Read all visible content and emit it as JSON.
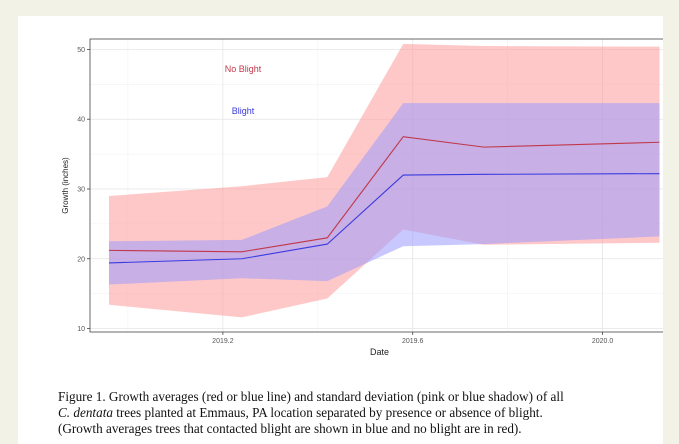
{
  "chart_data": {
    "type": "line",
    "xlabel": "Date",
    "ylabel": "Growth (inches)",
    "x_ticks": [
      "2019.2",
      "2019.6",
      "2020.0"
    ],
    "y_ticks": [
      "10",
      "20",
      "30",
      "40",
      "50"
    ],
    "xlim": [
      2018.92,
      2020.14
    ],
    "ylim": [
      9.5,
      51.5
    ],
    "grid": true,
    "x": [
      2018.96,
      2019.24,
      2019.42,
      2019.58,
      2019.75,
      2020.12
    ],
    "series": [
      {
        "name": "No Blight",
        "color": "#c0384a",
        "band_color": "#ff9a9a",
        "values": [
          21.2,
          21.0,
          23.0,
          37.5,
          36.0,
          36.7
        ],
        "lower": [
          13.4,
          11.6,
          14.3,
          24.2,
          22.0,
          22.3
        ],
        "upper": [
          29.0,
          30.4,
          31.7,
          50.8,
          50.5,
          50.4
        ]
      },
      {
        "name": "Blight",
        "color": "#3a3ae0",
        "band_color": "#9a9aff",
        "values": [
          19.4,
          20.0,
          22.1,
          32.0,
          32.1,
          32.2
        ],
        "lower": [
          16.3,
          17.2,
          16.8,
          21.8,
          22.1,
          23.2
        ],
        "upper": [
          22.5,
          22.7,
          27.5,
          42.3,
          42.3,
          42.3
        ]
      }
    ]
  },
  "caption": {
    "line1": "Figure 1. Growth averages (red or blue line) and standard deviation (pink or blue shadow) of all",
    "line2_species": "C. dentata",
    "line2_rest": " trees planted at Emmaus, PA location separated by presence or absence of blight.",
    "line3": "(Growth averages trees that contacted blight are shown in blue and no blight are in red)."
  }
}
